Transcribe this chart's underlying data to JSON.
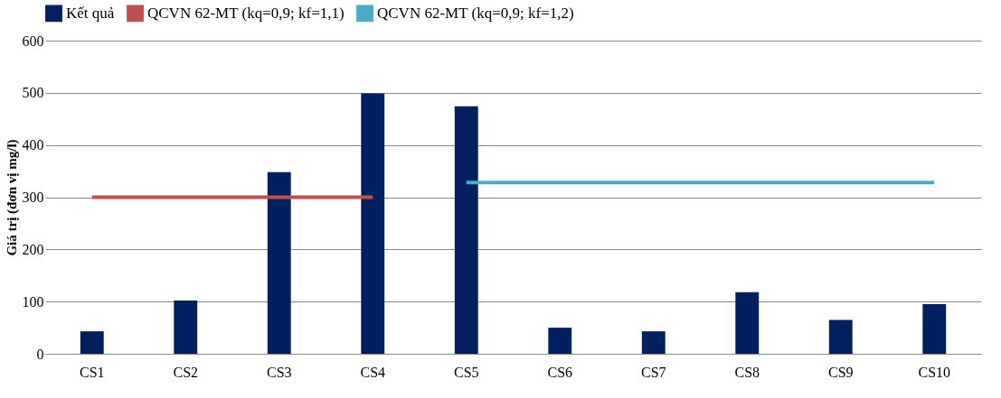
{
  "chart_data": {
    "type": "bar",
    "ylabel": "Giá trị  (đơn vị mg/l)",
    "categories": [
      "CS1",
      "CS2",
      "CS3",
      "CS4",
      "CS5",
      "CS6",
      "CS7",
      "CS8",
      "CS9",
      "CS10"
    ],
    "series": [
      {
        "name": "Kết quả",
        "color": "#002060",
        "values": [
          43,
          102,
          348,
          499,
          474,
          50,
          43,
          118,
          65,
          95
        ]
      },
      {
        "name": "QCVN 62-MT (kq=0,9; kf=1,1)",
        "type": "line",
        "color": "#c0504d",
        "values": [
          300,
          300,
          300,
          300,
          null,
          null,
          null,
          null,
          null,
          null
        ]
      },
      {
        "name": "QCVN 62-MT (kq=0,9; kf=1,2)",
        "type": "line",
        "color": "#4bacc6",
        "values": [
          null,
          null,
          null,
          null,
          328,
          328,
          328,
          328,
          328,
          328
        ]
      }
    ],
    "ylim": [
      0,
      600
    ],
    "yticks": [
      0,
      100,
      200,
      300,
      400,
      500,
      600
    ],
    "grid": "y",
    "legend": "top"
  }
}
